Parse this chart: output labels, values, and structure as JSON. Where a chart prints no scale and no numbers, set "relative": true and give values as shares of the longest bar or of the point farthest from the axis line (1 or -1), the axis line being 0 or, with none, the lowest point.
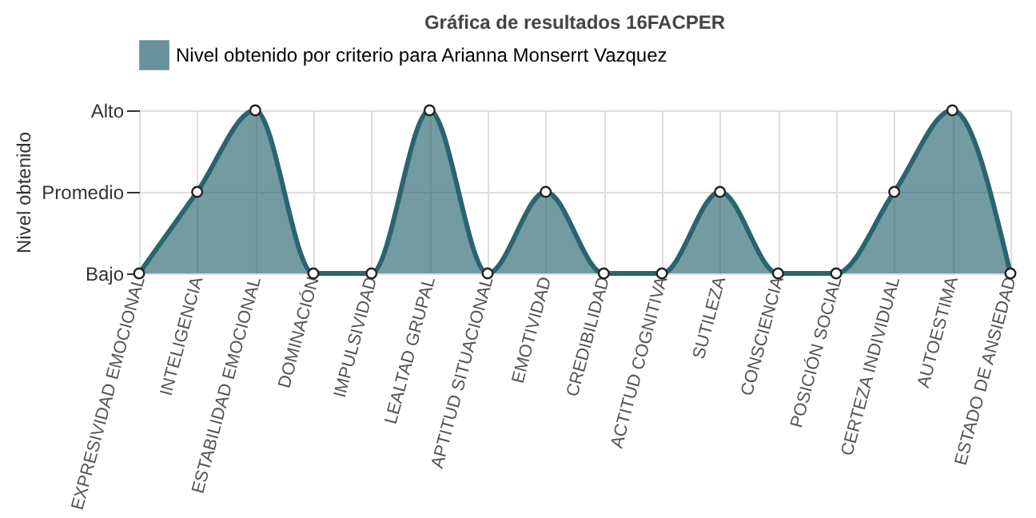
{
  "chart_data": {
    "type": "area",
    "title": "Gráfica de resultados 16FACPER",
    "ylabel": "Nivel obtenido",
    "categories": [
      "EXPRESIVIDAD EMOCIONAL",
      "INTELIGENCIA",
      "ESTABILIDAD EMOCIONAL",
      "DOMINACIÓN",
      "IMPULSIVIDAD",
      "LEALTAD GRUPAL",
      "APTITUD SITUACIONAL",
      "EMOTIVIDAD",
      "CREDIBILIDAD",
      "ACTITUD COGNITIVA",
      "SUTILEZA",
      "CONSCIENCIA",
      "POSICIÓN SOCIAL",
      "CERTEZA INDIVIDUAL",
      "AUTOESTIMA",
      "ESTADO DE ANSIEDAD"
    ],
    "y_categories": [
      "Alto",
      "Promedio",
      "Bajo"
    ],
    "series": [
      {
        "name": "Nivel obtenido por criterio para Arianna Monserrt Vazquez",
        "color": "#2a6470",
        "values": [
          0,
          0.5,
          1,
          0,
          0,
          1,
          0,
          0.5,
          0,
          0,
          0.5,
          0,
          0,
          0.5,
          1,
          0
        ]
      }
    ],
    "relative": true,
    "grid": true,
    "legend": "top",
    "marker": "circle"
  }
}
